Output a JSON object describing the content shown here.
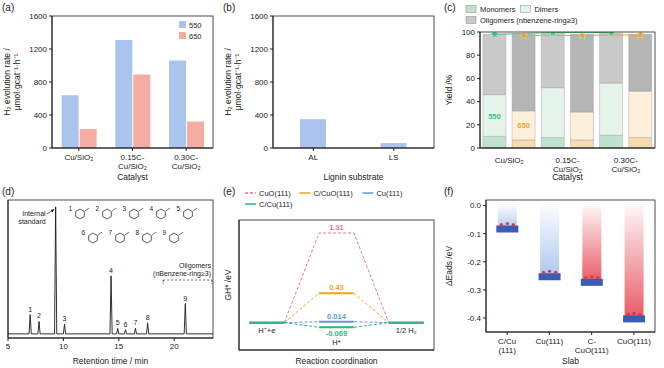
{
  "chart_data": [
    {
      "panel": "(a)",
      "type": "bar",
      "x_label": "Catalyst",
      "y_label": "H₂ evolution rate / μmol·gcat⁻¹·h⁻¹",
      "categories": [
        "Cu/SiO₂",
        "0.15C-Cu/SiO₂",
        "0.30C-Cu/SiO₂"
      ],
      "series": [
        {
          "name": "550",
          "color": "#a9c5ee",
          "values": [
            640,
            1310,
            1060
          ]
        },
        {
          "name": "650",
          "color": "#f3ada3",
          "values": [
            230,
            890,
            320
          ]
        }
      ],
      "ylim": [
        0,
        1600
      ],
      "yticks": [
        0,
        400,
        800,
        1200,
        1600
      ],
      "legend": "top-right"
    },
    {
      "panel": "(b)",
      "type": "bar",
      "x_label": "Lignin substrate",
      "y_label": "H₂ evolution rate / μmol·gcat⁻¹·h⁻¹",
      "categories": [
        "AL",
        "LS"
      ],
      "values": [
        350,
        60
      ],
      "color": "#a9c5ee",
      "ylim": [
        0,
        1600
      ],
      "yticks": [
        0,
        400,
        800,
        1200,
        1600
      ]
    },
    {
      "panel": "(c)",
      "type": "bar",
      "stacked": true,
      "x_label": "Catalyst",
      "y_label": "Yield /%",
      "categories": [
        "Cu/SiO₂",
        "0.15C-Cu/SiO₂",
        "0.30C-Cu/SiO₂"
      ],
      "groups": [
        {
          "name": "550",
          "series": [
            {
              "name": "Monomers",
              "color": "#bfe3cf",
              "values": [
                10,
                9,
                11
              ]
            },
            {
              "name": "Dimers",
              "color": "#e4f4eb",
              "values": [
                36,
                43,
                45
              ]
            },
            {
              "name": "Oligomers (nbenzene-ring≥3)",
              "color": "#c9c9c9",
              "values": [
                52,
                47,
                43
              ]
            }
          ],
          "total": {
            "color": "#3fbf88",
            "marker": "star",
            "values": [
              98,
              99.5,
              99.5
            ]
          }
        },
        {
          "name": "650",
          "series": [
            {
              "name": "Monomers",
              "color": "#f6dcae",
              "values": [
                7,
                7,
                9
              ]
            },
            {
              "name": "Dimers",
              "color": "#fdf0da",
              "values": [
                25,
                24,
                40
              ]
            },
            {
              "name": "Oligomers (nbenzene-ring≥3)",
              "color": "#b5b5b5",
              "values": [
                66,
                67,
                49
              ]
            }
          ],
          "total": {
            "color": "#e9a52a",
            "marker": "star",
            "values": [
              97,
              97,
              97.5
            ]
          }
        }
      ],
      "ylim": [
        0,
        100
      ],
      "yticks": [
        0,
        20,
        40,
        60,
        80,
        100
      ],
      "legend": "top"
    },
    {
      "panel": "(d)",
      "type": "line",
      "x_label": "Retention time / min",
      "x": [
        5,
        6.9,
        7.0,
        7.1,
        7.7,
        7.8,
        7.9,
        9.2,
        9.3,
        9.4,
        10.0,
        10.1,
        10.2,
        14.2,
        14.3,
        14.4,
        14.8,
        14.9,
        15.0,
        15.5,
        15.6,
        15.7,
        16.4,
        16.5,
        16.6,
        17.5,
        17.6,
        17.7,
        20.9,
        21.0,
        21.1,
        23.5
      ],
      "values": [
        3,
        3,
        17,
        3,
        3,
        12,
        3,
        3,
        95,
        3,
        3,
        10,
        3,
        3,
        45,
        3,
        3,
        7,
        3,
        3,
        6,
        3,
        3,
        7,
        3,
        3,
        11,
        3,
        3,
        25,
        3,
        3
      ],
      "color": "#1a1a1a",
      "xlim": [
        5,
        23.5
      ],
      "xticks": [
        5,
        10,
        15,
        20
      ],
      "ylim": [
        0,
        100
      ],
      "tick_labels": "x",
      "peaks": [
        {
          "label": "1",
          "x": 7.0
        },
        {
          "label": "2",
          "x": 7.8
        },
        {
          "label": "3",
          "x": 10.1
        },
        {
          "label": "4",
          "x": 14.3
        },
        {
          "label": "5",
          "x": 14.9
        },
        {
          "label": "6",
          "x": 15.6
        },
        {
          "label": "7",
          "x": 16.5
        },
        {
          "label": "8",
          "x": 17.6
        },
        {
          "label": "9",
          "x": 21.0
        }
      ],
      "annotations": [
        {
          "text": "Internal standard",
          "x": 9.3
        },
        {
          "text": "Oligomers (nBenzene-ring≥3)",
          "range": [
            19,
            23.5
          ]
        }
      ],
      "structures": [
        "1",
        "2",
        "3",
        "4",
        "5",
        "6",
        "7",
        "8",
        "9"
      ]
    },
    {
      "panel": "(e)",
      "type": "line",
      "x_label": "Reaction coordination",
      "y_label": "GH* /eV",
      "categories": [
        "H⁺+e",
        "H*",
        "1/2 H₂"
      ],
      "series": [
        {
          "name": "CuO(111)",
          "color": "#ee7384",
          "line_style": "dashed",
          "values": [
            0,
            1.31,
            0
          ],
          "value_labels": [
            null,
            "1.31",
            null
          ]
        },
        {
          "name": "C/CuO(111)",
          "color": "#e9a52a",
          "line_style": "solid",
          "values": [
            0,
            0.43,
            0
          ],
          "value_labels": [
            null,
            "0.43",
            null
          ]
        },
        {
          "name": "Cu(111)",
          "color": "#5b9be0",
          "line_style": "solid",
          "values": [
            0,
            0.014,
            0
          ],
          "value_labels": [
            null,
            "0.014",
            null
          ]
        },
        {
          "name": "C/Cu(111)",
          "color": "#2fb57b",
          "line_style": "solid",
          "values": [
            0,
            -0.069,
            0
          ],
          "value_labels": [
            null,
            "-0.069",
            null
          ]
        }
      ],
      "ylim": [
        -0.4,
        1.5
      ],
      "tick_labels": false,
      "legend": "top"
    },
    {
      "panel": "(f)",
      "type": "bar",
      "x_label": "Slab",
      "y_label": "ΔEads /eV",
      "categories": [
        "C/Cu(111)",
        "Cu(111)",
        "C-CuO(111)",
        "CuO(111)"
      ],
      "values": [
        -0.085,
        -0.255,
        -0.275,
        -0.405
      ],
      "color": "#e8505b",
      "marker": "slab",
      "ylim": [
        -0.45,
        0.02
      ],
      "yticks": [
        {
          "value": 0,
          "label": "0.0"
        },
        -0.1,
        -0.2,
        -0.3,
        -0.4
      ]
    }
  ]
}
